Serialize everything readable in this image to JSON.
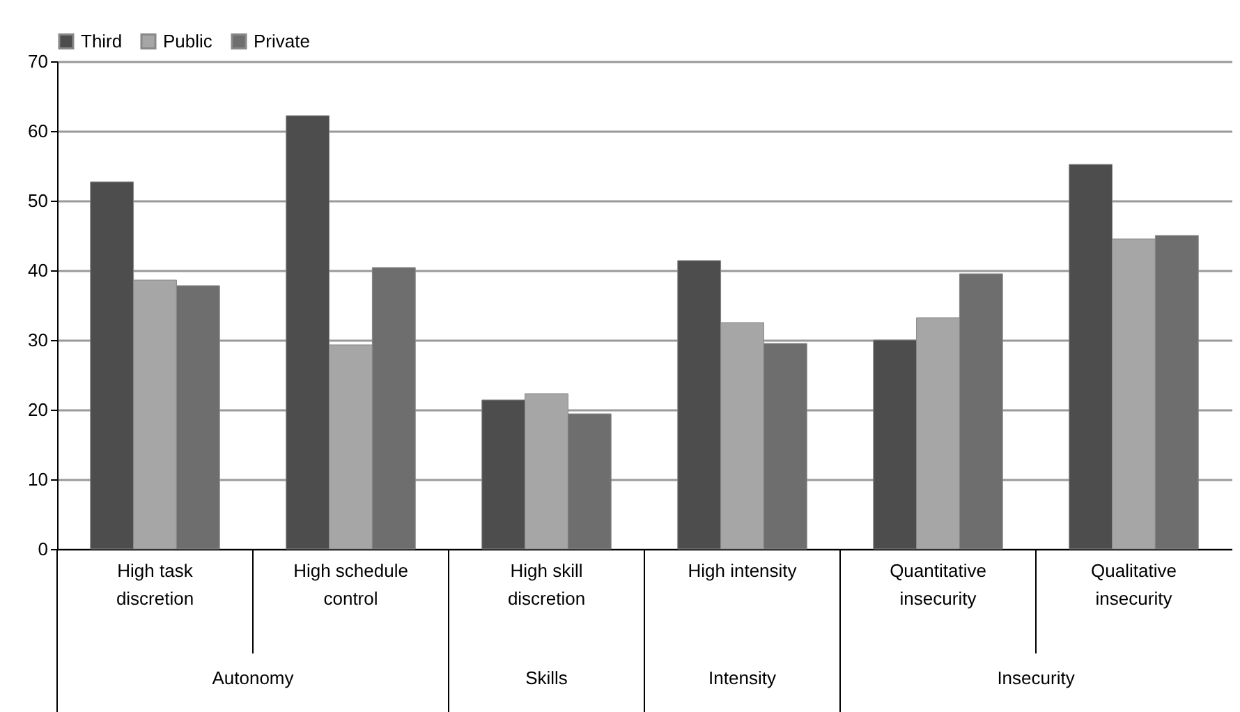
{
  "chart_data": {
    "type": "bar",
    "categories": [
      "High task discretion",
      "High schedule control",
      "High skill discretion",
      "High intensity",
      "Quantitative insecurity",
      "Qualitative insecurity"
    ],
    "series": [
      {
        "name": "Third",
        "color": "#4d4d4d",
        "values": [
          52.7,
          62.2,
          21.4,
          41.4,
          30.0,
          55.2
        ]
      },
      {
        "name": "Public",
        "color": "#a6a6a6",
        "values": [
          38.6,
          29.3,
          22.3,
          32.5,
          33.2,
          44.5
        ]
      },
      {
        "name": "Private",
        "color": "#6e6e6e",
        "values": [
          37.8,
          40.4,
          19.4,
          29.5,
          39.5,
          45.0
        ]
      }
    ],
    "annotations": [
      "Autonomy",
      "Skills",
      "Intensity",
      "Insecurity"
    ],
    "ylim": [
      0,
      70
    ],
    "yticks": [
      0,
      10,
      20,
      30,
      40,
      50,
      60,
      70
    ],
    "grid": "y",
    "legend": "top"
  }
}
